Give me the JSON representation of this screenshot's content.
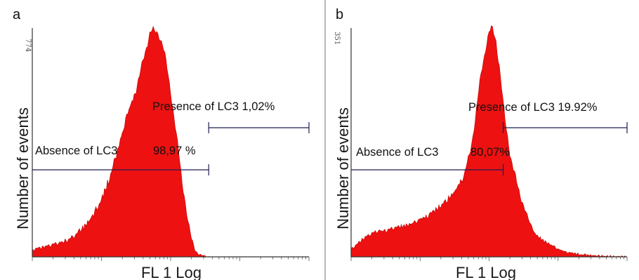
{
  "colors": {
    "fill": "#ee1111",
    "gate": "#1f1f4f",
    "axis": "#333333"
  },
  "chart_data": [
    {
      "type": "area",
      "panel_label": "a",
      "xlabel": "FL 1 Log",
      "ylabel": "Number of events",
      "x_scale": "log",
      "xlim": [
        1,
        10000
      ],
      "ylim": [
        0,
        774
      ],
      "y_max_tick": "774",
      "series": [
        {
          "x": [
            1,
            1.3,
            1.6,
            2,
            2.5,
            3.2,
            4,
            5,
            6.3,
            8,
            10,
            12.6,
            15.8,
            20,
            25,
            31.6,
            35.5,
            39.8,
            44.7,
            50,
            56,
            63,
            70.8,
            79.4,
            89,
            100,
            112,
            126,
            141,
            158,
            178,
            200,
            224,
            251,
            282,
            316,
            355,
            400,
            500,
            630,
            1000,
            2000,
            10000
          ],
          "y": [
            25,
            30,
            36,
            42,
            48,
            55,
            70,
            90,
            115,
            150,
            195,
            255,
            330,
            420,
            500,
            560,
            610,
            665,
            710,
            750,
            772,
            765,
            740,
            700,
            640,
            560,
            470,
            380,
            290,
            200,
            120,
            60,
            25,
            10,
            4,
            2,
            1,
            0,
            0,
            0,
            0,
            0,
            0
          ]
        }
      ],
      "gates": [
        {
          "label": "Absence of LC3",
          "value_label": "98,97 %",
          "from": 1,
          "to": 355
        },
        {
          "label": "Presence of LC3 1,02%",
          "from": 355,
          "to": 10000
        }
      ]
    },
    {
      "type": "area",
      "panel_label": "b",
      "xlabel": "FL 1 Log",
      "ylabel": "Number of events",
      "x_scale": "log",
      "xlim": [
        1,
        10000
      ],
      "ylim": [
        0,
        351
      ],
      "y_max_tick": "351",
      "series": [
        {
          "x": [
            1,
            1.3,
            1.6,
            2,
            2.5,
            3.2,
            4,
            5,
            6.3,
            8,
            10,
            12.6,
            15.8,
            20,
            25,
            31.6,
            39.8,
            44.7,
            50,
            56,
            63,
            70.8,
            79.4,
            89,
            100,
            112,
            126,
            141,
            158,
            178,
            200,
            224,
            251,
            282,
            316,
            355,
            400,
            450,
            500,
            630,
            800,
            1000,
            1260,
            1580,
            2000,
            2510,
            3160,
            5000,
            10000
          ],
          "y": [
            12,
            22,
            30,
            36,
            40,
            40,
            44,
            46,
            48,
            52,
            58,
            62,
            70,
            78,
            88,
            100,
            118,
            130,
            150,
            175,
            210,
            255,
            290,
            320,
            345,
            351,
            330,
            290,
            240,
            195,
            160,
            135,
            115,
            95,
            78,
            62,
            48,
            38,
            32,
            24,
            18,
            12,
            8,
            6,
            4,
            3,
            2,
            1,
            0
          ]
        }
      ],
      "gates": [
        {
          "label": "Absence of LC3",
          "value_label": "80,07%",
          "from": 1,
          "to": 160
        },
        {
          "label": "Presence of LC3 19.92%",
          "from": 160,
          "to": 10000
        }
      ]
    }
  ]
}
